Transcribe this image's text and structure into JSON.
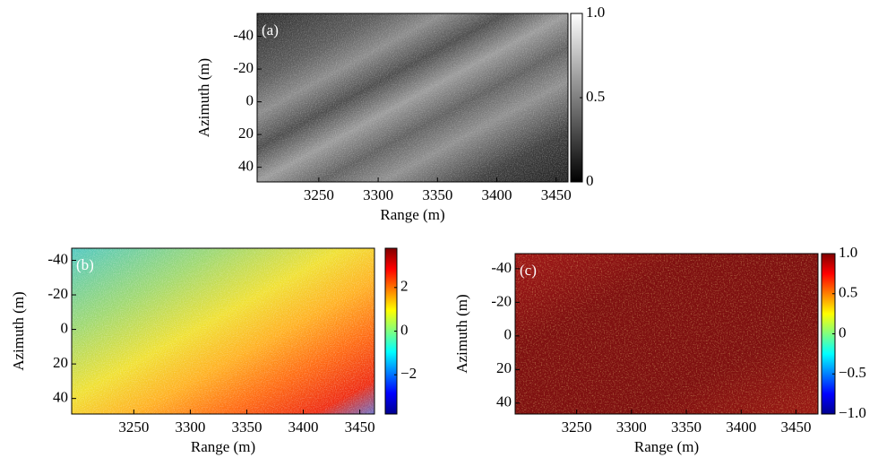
{
  "chart_data": [
    {
      "type": "image",
      "panel_label": "(a)",
      "xlabel": "Range (m)",
      "ylabel": "Azimuth (m)",
      "xlim": [
        3198,
        3460
      ],
      "xticks": [
        3250,
        3300,
        3350,
        3400,
        3450
      ],
      "ylim": [
        -54,
        49
      ],
      "yreverse": true,
      "yticks": [
        -40,
        -20,
        0,
        20,
        40
      ],
      "colormap": "gray",
      "clim": [
        0,
        1
      ],
      "cticks": [
        0,
        0.5,
        {
          "value": 1,
          "label": "1.0"
        }
      ]
    },
    {
      "type": "image",
      "panel_label": "(b)",
      "xlabel": "Range (m)",
      "ylabel": "Azimuth (m)",
      "xlim": [
        3195,
        3463
      ],
      "xticks": [
        3250,
        3300,
        3350,
        3400,
        3450
      ],
      "ylim": [
        -47,
        49
      ],
      "yreverse": true,
      "yticks": [
        -40,
        -20,
        0,
        20,
        40
      ],
      "colormap": "jet",
      "clim": [
        -3.8,
        3.8
      ],
      "cticks": [
        {
          "value": -2,
          "label": "−2"
        },
        0,
        2
      ]
    },
    {
      "type": "image",
      "panel_label": "(c)",
      "xlabel": "Range (m)",
      "ylabel": "Azimuth (m)",
      "xlim": [
        3194,
        3470
      ],
      "xticks": [
        3250,
        3300,
        3350,
        3400,
        3450
      ],
      "ylim": [
        -49,
        46.5
      ],
      "yreverse": true,
      "yticks": [
        -40,
        -20,
        0,
        20,
        40
      ],
      "colormap": "jet",
      "clim": [
        -1,
        1
      ],
      "cticks": [
        {
          "value": -1,
          "label": "−1.0"
        },
        {
          "value": -0.5,
          "label": "−0.5"
        },
        0,
        0.5,
        {
          "value": 1,
          "label": "1.0"
        }
      ]
    }
  ]
}
